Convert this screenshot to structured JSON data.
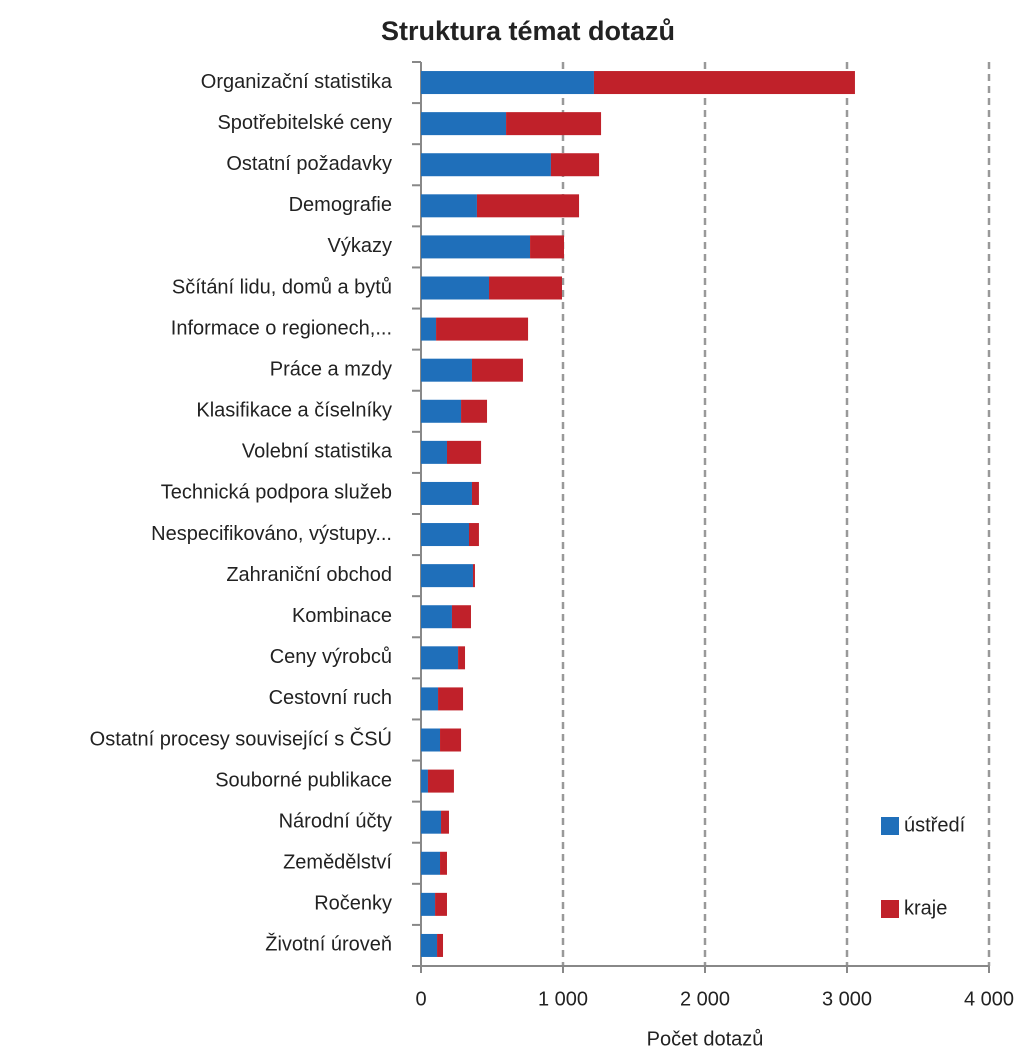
{
  "chart_data": {
    "type": "stacked-barh",
    "title": "Struktura témat dotazů",
    "xlabel": "Počet dotazů",
    "categories": [
      "Organizační statistika",
      "Spotřebitelské ceny",
      "Ostatní požadavky",
      "Demografie",
      "Výkazy",
      "Sčítání lidu, domů a bytů",
      "Informace o regionech,...",
      "Práce a mzdy",
      "Klasifikace a číselníky",
      "Volební statistika",
      "Technická podpora služeb",
      "Nespecifikováno, výstupy...",
      "Zahraniční obchod",
      "Kombinace",
      "Ceny výrobců",
      "Cestovní ruch",
      "Ostatní procesy související s ČSÚ",
      "Souborné publikace",
      "Národní účty",
      "Zemědělství",
      "Ročenky",
      "Životní úroveň"
    ],
    "series": [
      {
        "name": "ústředí",
        "color": "#1f6fba",
        "values": [
          1218,
          599,
          915,
          394,
          768,
          479,
          106,
          359,
          282,
          183,
          359,
          338,
          366,
          218,
          261,
          120,
          134,
          49,
          141,
          134,
          99,
          113
        ]
      },
      {
        "name": "kraje",
        "color": "#c0212a",
        "values": [
          1838,
          669,
          339,
          719,
          239,
          514,
          648,
          359,
          183,
          240,
          49,
          70,
          14,
          134,
          49,
          176,
          148,
          183,
          56,
          49,
          84,
          42
        ]
      }
    ],
    "xlim": [
      0,
      4000
    ],
    "xticks": [
      0,
      {
        "value": 1000,
        "label": "1 000"
      },
      {
        "value": 2000,
        "label": "2 000"
      },
      {
        "value": 3000,
        "label": "3 000"
      },
      {
        "value": 4000,
        "label": "4 000"
      }
    ],
    "grid": true,
    "legend": "right"
  }
}
